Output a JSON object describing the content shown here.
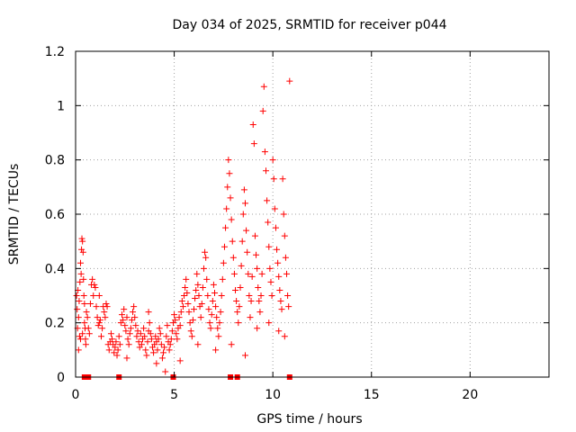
{
  "chart_data": {
    "type": "scatter",
    "title": "Day 034 of 2025, SRMTID for receiver p044",
    "xlabel": "GPS time / hours",
    "ylabel": "SRMTID / TECUs",
    "xlim": [
      0,
      24
    ],
    "ylim": [
      0,
      1.2
    ],
    "xticks": [
      0,
      5,
      10,
      15,
      20
    ],
    "yticks": [
      0,
      0.2,
      0.4,
      0.6,
      0.8,
      1,
      1.2
    ],
    "xtick_labels": [
      "0",
      "5",
      "10",
      "15",
      "20"
    ],
    "ytick_labels": [
      "0",
      "0.2",
      "0.4",
      "0.6",
      "0.8",
      "1",
      "1.2"
    ],
    "grid": true,
    "marker": "+",
    "color": "#ff0000",
    "series": [
      {
        "name": "SRMTID p044",
        "points": [
          [
            0.05,
            0.3
          ],
          [
            0.08,
            0.25
          ],
          [
            0.1,
            0.18
          ],
          [
            0.12,
            0.32
          ],
          [
            0.15,
            0.22
          ],
          [
            0.18,
            0.28
          ],
          [
            0.2,
            0.15
          ],
          [
            0.22,
            0.35
          ],
          [
            0.25,
            0.42
          ],
          [
            0.28,
            0.38
          ],
          [
            0.3,
            0.47
          ],
          [
            0.32,
            0.51
          ],
          [
            0.35,
            0.5
          ],
          [
            0.38,
            0.46
          ],
          [
            0.4,
            0.36
          ],
          [
            0.42,
            0.3
          ],
          [
            0.45,
            0.27
          ],
          [
            0.48,
            0.18
          ],
          [
            0.5,
            0.14
          ],
          [
            0.52,
            0.12
          ],
          [
            0.15,
            0.1
          ],
          [
            0.25,
            0.14
          ],
          [
            0.35,
            0.16
          ],
          [
            0.45,
            0.2
          ],
          [
            0.55,
            0.24
          ],
          [
            0.6,
            0.22
          ],
          [
            0.65,
            0.18
          ],
          [
            0.7,
            0.16
          ],
          [
            0.75,
            0.27
          ],
          [
            0.8,
            0.34
          ],
          [
            0.85,
            0.36
          ],
          [
            0.9,
            0.3
          ],
          [
            0.95,
            0.34
          ],
          [
            1.0,
            0.33
          ],
          [
            1.05,
            0.26
          ],
          [
            1.1,
            0.22
          ],
          [
            1.15,
            0.19
          ],
          [
            1.2,
            0.2
          ],
          [
            1.25,
            0.21
          ],
          [
            1.3,
            0.15
          ],
          [
            1.35,
            0.18
          ],
          [
            1.4,
            0.26
          ],
          [
            1.45,
            0.24
          ],
          [
            1.5,
            0.22
          ],
          [
            1.55,
            0.27
          ],
          [
            1.6,
            0.26
          ],
          [
            1.65,
            0.12
          ],
          [
            1.7,
            0.1
          ],
          [
            1.75,
            0.13
          ],
          [
            1.8,
            0.16
          ],
          [
            1.85,
            0.14
          ],
          [
            1.9,
            0.12
          ],
          [
            1.95,
            0.09
          ],
          [
            2.0,
            0.11
          ],
          [
            2.05,
            0.13
          ],
          [
            2.1,
            0.08
          ],
          [
            2.15,
            0.1
          ],
          [
            2.2,
            0.15
          ],
          [
            2.25,
            0.12
          ],
          [
            2.3,
            0.2
          ],
          [
            2.35,
            0.23
          ],
          [
            2.4,
            0.21
          ],
          [
            2.45,
            0.25
          ],
          [
            2.5,
            0.19
          ],
          [
            2.55,
            0.17
          ],
          [
            2.6,
            0.22
          ],
          [
            2.65,
            0.14
          ],
          [
            2.7,
            0.12
          ],
          [
            2.75,
            0.16
          ],
          [
            2.8,
            0.18
          ],
          [
            2.85,
            0.21
          ],
          [
            2.9,
            0.24
          ],
          [
            2.95,
            0.26
          ],
          [
            3.0,
            0.22
          ],
          [
            3.05,
            0.19
          ],
          [
            3.1,
            0.15
          ],
          [
            3.15,
            0.17
          ],
          [
            3.2,
            0.13
          ],
          [
            3.25,
            0.11
          ],
          [
            3.3,
            0.16
          ],
          [
            3.35,
            0.12
          ],
          [
            3.4,
            0.14
          ],
          [
            3.45,
            0.18
          ],
          [
            3.5,
            0.15
          ],
          [
            3.55,
            0.1
          ],
          [
            3.6,
            0.08
          ],
          [
            3.65,
            0.13
          ],
          [
            3.7,
            0.17
          ],
          [
            3.75,
            0.2
          ],
          [
            3.8,
            0.16
          ],
          [
            3.85,
            0.14
          ],
          [
            3.9,
            0.11
          ],
          [
            3.95,
            0.09
          ],
          [
            4.0,
            0.12
          ],
          [
            4.05,
            0.15
          ],
          [
            4.1,
            0.13
          ],
          [
            4.15,
            0.1
          ],
          [
            4.2,
            0.14
          ],
          [
            4.25,
            0.18
          ],
          [
            4.3,
            0.16
          ],
          [
            4.35,
            0.12
          ],
          [
            4.4,
            0.07
          ],
          [
            4.45,
            0.09
          ],
          [
            4.5,
            0.11
          ],
          [
            4.55,
            0.02
          ],
          [
            4.6,
            0.15
          ],
          [
            4.65,
            0.19
          ],
          [
            4.7,
            0.13
          ],
          [
            4.75,
            0.1
          ],
          [
            4.8,
            0.12
          ],
          [
            4.85,
            0.14
          ],
          [
            4.9,
            0.17
          ],
          [
            4.95,
            0.2
          ],
          [
            5.0,
            0.23
          ],
          [
            5.05,
            0.21
          ],
          [
            5.1,
            0.16
          ],
          [
            5.15,
            0.14
          ],
          [
            5.2,
            0.18
          ],
          [
            5.25,
            0.22
          ],
          [
            5.3,
            0.19
          ],
          [
            5.35,
            0.24
          ],
          [
            5.4,
            0.28
          ],
          [
            5.45,
            0.26
          ],
          [
            5.5,
            0.3
          ],
          [
            5.55,
            0.33
          ],
          [
            5.6,
            0.36
          ],
          [
            5.65,
            0.31
          ],
          [
            5.7,
            0.27
          ],
          [
            5.75,
            0.24
          ],
          [
            5.8,
            0.2
          ],
          [
            5.85,
            0.17
          ],
          [
            5.9,
            0.15
          ],
          [
            5.95,
            0.21
          ],
          [
            6.0,
            0.25
          ],
          [
            6.05,
            0.29
          ],
          [
            6.1,
            0.32
          ],
          [
            6.15,
            0.38
          ],
          [
            6.2,
            0.34
          ],
          [
            6.25,
            0.3
          ],
          [
            6.3,
            0.26
          ],
          [
            6.35,
            0.22
          ],
          [
            6.4,
            0.27
          ],
          [
            6.45,
            0.33
          ],
          [
            6.5,
            0.4
          ],
          [
            6.55,
            0.46
          ],
          [
            6.6,
            0.44
          ],
          [
            6.65,
            0.36
          ],
          [
            6.7,
            0.3
          ],
          [
            6.75,
            0.25
          ],
          [
            6.8,
            0.2
          ],
          [
            6.85,
            0.18
          ],
          [
            6.9,
            0.23
          ],
          [
            6.95,
            0.28
          ],
          [
            7.0,
            0.34
          ],
          [
            7.05,
            0.31
          ],
          [
            7.1,
            0.26
          ],
          [
            7.15,
            0.22
          ],
          [
            7.2,
            0.18
          ],
          [
            7.25,
            0.15
          ],
          [
            7.3,
            0.2
          ],
          [
            7.35,
            0.24
          ],
          [
            7.4,
            0.3
          ],
          [
            7.45,
            0.36
          ],
          [
            7.5,
            0.42
          ],
          [
            7.55,
            0.48
          ],
          [
            7.6,
            0.55
          ],
          [
            7.65,
            0.62
          ],
          [
            7.7,
            0.7
          ],
          [
            7.75,
            0.8
          ],
          [
            7.8,
            0.75
          ],
          [
            7.85,
            0.66
          ],
          [
            7.9,
            0.58
          ],
          [
            7.95,
            0.5
          ],
          [
            8.0,
            0.44
          ],
          [
            8.05,
            0.38
          ],
          [
            8.1,
            0.32
          ],
          [
            8.15,
            0.28
          ],
          [
            8.2,
            0.24
          ],
          [
            8.25,
            0.2
          ],
          [
            8.3,
            0.26
          ],
          [
            8.35,
            0.33
          ],
          [
            8.4,
            0.41
          ],
          [
            8.45,
            0.5
          ],
          [
            8.5,
            0.6
          ],
          [
            8.55,
            0.69
          ],
          [
            8.6,
            0.64
          ],
          [
            8.65,
            0.54
          ],
          [
            8.7,
            0.46
          ],
          [
            8.75,
            0.38
          ],
          [
            8.8,
            0.3
          ],
          [
            8.85,
            0.22
          ],
          [
            8.9,
            0.28
          ],
          [
            8.95,
            0.37
          ],
          [
            9.0,
            0.93
          ],
          [
            9.05,
            0.86
          ],
          [
            9.1,
            0.52
          ],
          [
            9.15,
            0.45
          ],
          [
            9.2,
            0.4
          ],
          [
            9.25,
            0.33
          ],
          [
            9.3,
            0.28
          ],
          [
            9.35,
            0.24
          ],
          [
            9.4,
            0.3
          ],
          [
            9.45,
            0.38
          ],
          [
            9.5,
            0.98
          ],
          [
            9.55,
            1.07
          ],
          [
            9.6,
            0.83
          ],
          [
            9.65,
            0.76
          ],
          [
            9.7,
            0.65
          ],
          [
            9.75,
            0.57
          ],
          [
            9.8,
            0.48
          ],
          [
            9.85,
            0.4
          ],
          [
            9.9,
            0.35
          ],
          [
            9.95,
            0.3
          ],
          [
            10.0,
            0.8
          ],
          [
            10.05,
            0.73
          ],
          [
            10.1,
            0.62
          ],
          [
            10.15,
            0.55
          ],
          [
            10.2,
            0.47
          ],
          [
            10.25,
            0.42
          ],
          [
            10.3,
            0.37
          ],
          [
            10.35,
            0.32
          ],
          [
            10.4,
            0.28
          ],
          [
            10.45,
            0.25
          ],
          [
            10.5,
            0.73
          ],
          [
            10.55,
            0.6
          ],
          [
            10.6,
            0.52
          ],
          [
            10.65,
            0.44
          ],
          [
            10.7,
            0.38
          ],
          [
            10.75,
            0.3
          ],
          [
            10.8,
            0.26
          ],
          [
            10.85,
            1.09
          ],
          [
            1.2,
            0.3
          ],
          [
            2.6,
            0.07
          ],
          [
            3.7,
            0.24
          ],
          [
            4.1,
            0.05
          ],
          [
            5.3,
            0.06
          ],
          [
            6.2,
            0.12
          ],
          [
            7.1,
            0.1
          ],
          [
            7.9,
            0.12
          ],
          [
            8.6,
            0.08
          ],
          [
            9.2,
            0.18
          ],
          [
            9.8,
            0.2
          ],
          [
            10.3,
            0.17
          ],
          [
            10.6,
            0.15
          ]
        ]
      }
    ],
    "zero_markers_x": [
      0.45,
      0.65,
      2.2,
      4.95,
      7.85,
      8.2,
      10.85
    ]
  }
}
